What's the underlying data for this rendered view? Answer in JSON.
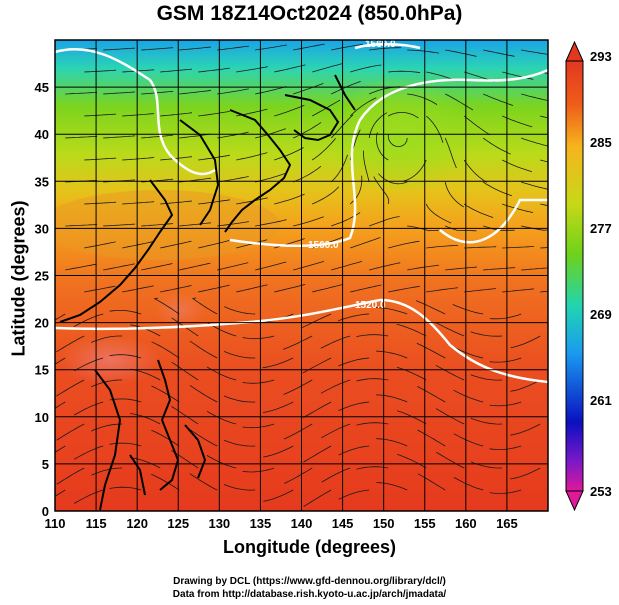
{
  "title": "GSM 18Z14Oct2024 (850.0hPa)",
  "axes": {
    "xlabel": "Longitude (degrees)",
    "ylabel": "Latitude  (degrees)",
    "xlim": [
      110,
      170
    ],
    "ylim": [
      0,
      50
    ],
    "xticks": [
      110,
      115,
      120,
      125,
      130,
      135,
      140,
      145,
      150,
      155,
      160,
      165
    ],
    "yticks": [
      0,
      5,
      10,
      15,
      20,
      25,
      30,
      35,
      40,
      45
    ],
    "grid": true
  },
  "colorbar": {
    "labels": [
      "293",
      "285",
      "277",
      "269",
      "261",
      "253"
    ],
    "range": [
      253,
      293
    ],
    "colors": [
      "#e0189a",
      "#0a10c0",
      "#1a9af0",
      "#22d4b0",
      "#6ed21a",
      "#c8d818",
      "#f5b51c",
      "#f05c1a",
      "#e23820"
    ]
  },
  "contours": [
    {
      "label": "1560.0",
      "lat_range": "northern"
    },
    {
      "label": "1560.0",
      "lat_range": "mid"
    },
    {
      "label": "1520.0",
      "lat_range": "subtropical"
    }
  ],
  "credits": {
    "line1": "Drawing by DCL (https://www.gfd-dennou.org/library/dcl/)",
    "line2": "Data from http://database.rish.kyoto-u.ac.jp/arch/jmadata/"
  },
  "icons": {
    "colorbar_top": "triangle-up-icon",
    "colorbar_bottom": "triangle-down-icon"
  }
}
